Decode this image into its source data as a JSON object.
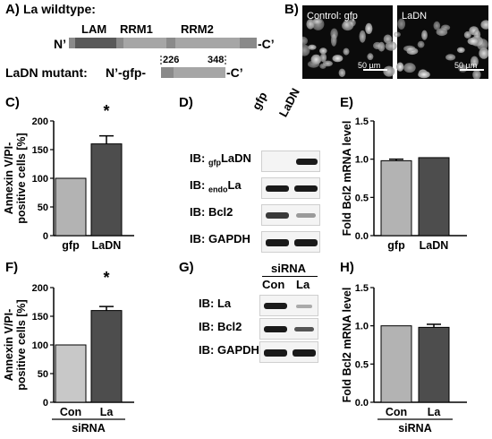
{
  "panels": {
    "A": {
      "label": "A)",
      "wildtype_title": "La wildtype:",
      "n_term": "N’",
      "c_term": "-C’",
      "domains": [
        "LAM",
        "RRM1",
        "RRM2"
      ],
      "mutant_label": "LaDN mutant:",
      "mutant_prefix": "N’-gfp-",
      "mutant_c": "-C’",
      "mutant_start": "226",
      "mutant_end": "348"
    },
    "B": {
      "label": "B)",
      "images": [
        {
          "title": "Control: gfp",
          "scale": "50 µm"
        },
        {
          "title": "LaDN",
          "scale": "50 µm"
        }
      ]
    },
    "C": {
      "label": "C)",
      "sig": "*"
    },
    "D": {
      "label": "D)",
      "lanes": [
        "gfp",
        "LaDN"
      ],
      "rows": [
        {
          "pre": "IB: ",
          "sub": "gfp",
          "post": "LaDN"
        },
        {
          "pre": "IB: ",
          "sub": "endo",
          "post": "La"
        },
        {
          "pre": "IB: Bcl2",
          "sub": "",
          "post": ""
        },
        {
          "pre": "IB: GAPDH",
          "sub": "",
          "post": ""
        }
      ]
    },
    "E": {
      "label": "E)"
    },
    "F": {
      "label": "F)",
      "sig": "*"
    },
    "G": {
      "label": "G)",
      "group": "siRNA",
      "lanes": [
        "Con",
        "La"
      ],
      "rows": [
        "IB: La",
        "IB: Bcl2",
        "IB: GAPDH"
      ]
    },
    "H": {
      "label": "H)"
    }
  },
  "chart_data": [
    {
      "id": "C",
      "type": "bar",
      "categories": [
        "gfp",
        "LaDN"
      ],
      "values": [
        100,
        160
      ],
      "errors": [
        0,
        14
      ],
      "colors": [
        "#b3b3b3",
        "#4d4d4d"
      ],
      "ylabel": "Annexin V/PI-positive cells [%]",
      "ylabel_lines": [
        "Annexin V/PI-",
        "positive cells [%]"
      ],
      "ylim": [
        0,
        200
      ],
      "yticks": [
        "0",
        "50",
        "100",
        "150",
        "200"
      ],
      "xgroup": ""
    },
    {
      "id": "E",
      "type": "bar",
      "categories": [
        "gfp",
        "LaDN"
      ],
      "values": [
        0.98,
        1.02
      ],
      "errors": [
        0.02,
        0.0
      ],
      "colors": [
        "#b3b3b3",
        "#4d4d4d"
      ],
      "ylabel": "Fold Bcl2 mRNA level",
      "ylabel_lines": [
        "Fold Bcl2 mRNA level"
      ],
      "ylim": [
        0,
        1.5
      ],
      "yticks": [
        "0.0",
        "0.5",
        "1.0",
        "1.5"
      ],
      "xgroup": ""
    },
    {
      "id": "F",
      "type": "bar",
      "categories": [
        "Con",
        "La"
      ],
      "values": [
        100,
        160
      ],
      "errors": [
        0,
        7
      ],
      "colors": [
        "#c8c8c8",
        "#4d4d4d"
      ],
      "ylabel": "Annexin V/PI-positive cells [%]",
      "ylabel_lines": [
        "Annexin V/PI-",
        "positive cells [%]"
      ],
      "ylim": [
        0,
        200
      ],
      "yticks": [
        "0",
        "50",
        "100",
        "150",
        "200"
      ],
      "xgroup": "siRNA"
    },
    {
      "id": "H",
      "type": "bar",
      "categories": [
        "Con",
        "La"
      ],
      "values": [
        1.0,
        0.98
      ],
      "errors": [
        0.0,
        0.04
      ],
      "colors": [
        "#b3b3b3",
        "#4d4d4d"
      ],
      "ylabel": "Fold Bcl2 mRNA level",
      "ylabel_lines": [
        "Fold Bcl2 mRNA level"
      ],
      "ylim": [
        0,
        1.5
      ],
      "yticks": [
        "0.0",
        "0.5",
        "1.0",
        "1.5"
      ],
      "xgroup": "siRNA"
    }
  ]
}
